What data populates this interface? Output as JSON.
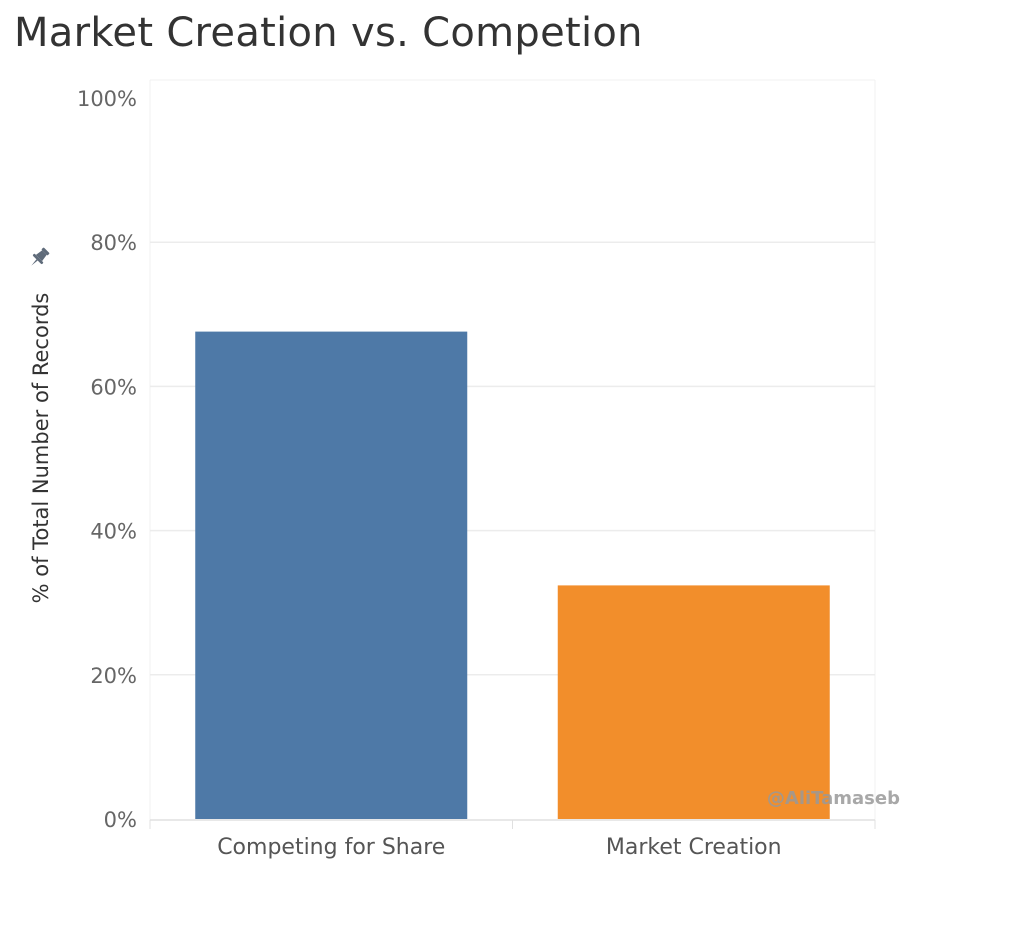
{
  "chart_data": {
    "type": "bar",
    "title": "Market Creation vs. Competion",
    "ylabel": "% of Total Number of Records",
    "xlabel": "",
    "categories": [
      "Competing for Share",
      "Market Creation"
    ],
    "values": [
      67.6,
      32.4
    ],
    "colors": [
      "#4e79a7",
      "#f28e2b"
    ],
    "ylim": [
      0,
      100
    ],
    "yticks": [
      0,
      20,
      40,
      60,
      80,
      100
    ],
    "ytick_labels": [
      "0%",
      "20%",
      "40%",
      "60%",
      "80%",
      "100%"
    ],
    "grid": true,
    "watermark": "@AliTamaseb"
  },
  "icons": {
    "pin": "pin-icon"
  }
}
